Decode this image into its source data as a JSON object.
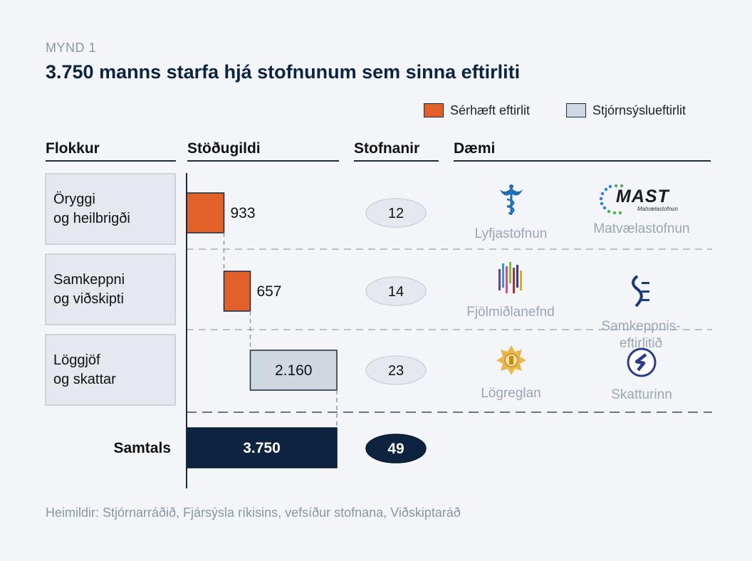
{
  "figure_label": "MYND 1",
  "title": "3.750 manns starfa hjá stofnunum sem sinna eftirliti",
  "legend": [
    {
      "label": "Sérhæft eftirlit",
      "color": "#e2612a"
    },
    {
      "label": "Stjórnsýslueftirlit",
      "color": "#cfd7e1"
    }
  ],
  "columns": {
    "category": "Flokkur",
    "positions": "Stöðugildi",
    "agencies": "Stofnanir",
    "examples": "Dæmi"
  },
  "colors": {
    "specialized": "#e2612a",
    "administrative": "#cfd7e1",
    "total": "#0d2340",
    "pill": "#e5e9ef"
  },
  "chart_data": {
    "type": "bar",
    "categories": [
      "Öryggi\nog heilbrigði",
      "Samkeppni\nog viðskipti",
      "Löggjöf\nog skattar"
    ],
    "values": [
      933,
      657,
      2160
    ],
    "value_labels": [
      "933",
      "657",
      "2.160"
    ],
    "kind": [
      "specialized",
      "specialized",
      "administrative"
    ],
    "agencies": [
      12,
      14,
      23
    ],
    "total": {
      "label": "Samtals",
      "value": 3750,
      "value_label": "3.750",
      "agencies": 49
    },
    "examples": [
      [
        {
          "name": "Lyfjastofnun",
          "icon": "caduceus-icon"
        },
        {
          "name": "Matvælastofnun",
          "icon": "mast-logo",
          "logo_text": "MAST",
          "logo_sub": "Matvælastofnun"
        }
      ],
      [
        {
          "name": "Fjölmiðlanefnd",
          "icon": "color-bars-icon"
        },
        {
          "name": "Samkeppnis-\neftirlitið",
          "icon": "s-e-logo"
        }
      ],
      [
        {
          "name": "Lögreglan",
          "icon": "police-star-icon"
        },
        {
          "name": "Skatturinn",
          "icon": "skatturinn-logo"
        }
      ]
    ]
  },
  "source": "Heimildir: Stjórnarráðið, Fjársýsla ríkisins, vefsíður stofnana, Viðskiptaráð"
}
